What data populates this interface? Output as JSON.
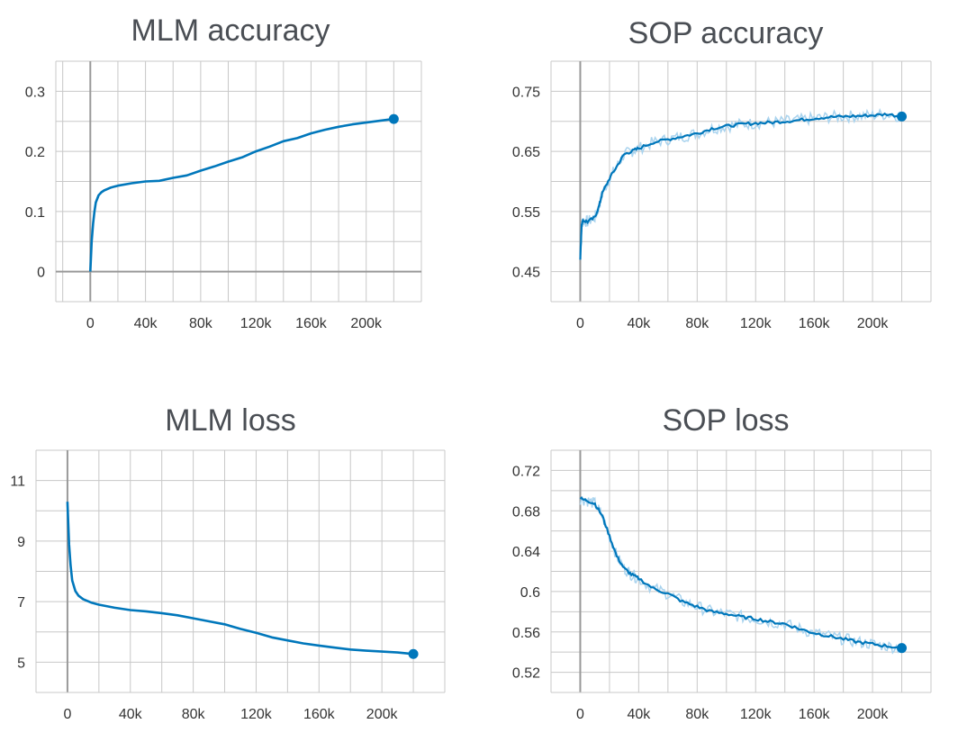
{
  "colors": {
    "series": "#0077bb",
    "raw": "#a9d3ee",
    "grid": "#c8c8c8",
    "axis": "#999999",
    "title": "#4a4e54"
  },
  "chart_data": [
    {
      "type": "line",
      "title": "MLM accuracy",
      "xlim": [
        -25000,
        240000
      ],
      "ylim": [
        -0.05,
        0.35
      ],
      "x_ticks": [
        0,
        40000,
        80000,
        120000,
        160000,
        200000
      ],
      "x_tick_labels": [
        "0",
        "40k",
        "80k",
        "120k",
        "160k",
        "200k"
      ],
      "y_ticks": [
        0,
        0.1,
        0.2,
        0.3
      ],
      "y_tick_labels": [
        "0",
        "0.1",
        "0.2",
        "0.3"
      ],
      "grid": true,
      "series": [
        {
          "x": [
            0,
            1000,
            2000,
            3000,
            4000,
            6000,
            8000,
            10000,
            15000,
            20000,
            30000,
            40000,
            50000,
            60000,
            70000,
            80000,
            90000,
            100000,
            110000,
            120000,
            130000,
            140000,
            150000,
            160000,
            170000,
            180000,
            190000,
            200000,
            210000,
            220000
          ],
          "y": [
            0,
            0.05,
            0.08,
            0.1,
            0.115,
            0.127,
            0.132,
            0.135,
            0.14,
            0.143,
            0.147,
            0.15,
            0.151,
            0.156,
            0.16,
            0.168,
            0.175,
            0.183,
            0.19,
            0.2,
            0.208,
            0.217,
            0.222,
            0.23,
            0.236,
            0.241,
            0.245,
            0.248,
            0.251,
            0.254
          ]
        }
      ],
      "last_point": [
        220000,
        0.254
      ]
    },
    {
      "type": "line",
      "title": "SOP accuracy",
      "xlim": [
        -20000,
        240000
      ],
      "ylim": [
        0.4,
        0.8
      ],
      "x_ticks": [
        0,
        40000,
        80000,
        120000,
        160000,
        200000
      ],
      "x_tick_labels": [
        "0",
        "40k",
        "80k",
        "120k",
        "160k",
        "200k"
      ],
      "y_ticks": [
        0.45,
        0.55,
        0.65,
        0.75
      ],
      "y_tick_labels": [
        "0.45",
        "0.55",
        "0.65",
        "0.75"
      ],
      "grid": true,
      "series": [
        {
          "x": [
            0,
            1000,
            2000,
            5000,
            10000,
            13000,
            15000,
            20000,
            25000,
            30000,
            35000,
            40000,
            50000,
            60000,
            70000,
            80000,
            90000,
            100000,
            110000,
            120000,
            130000,
            140000,
            150000,
            160000,
            170000,
            180000,
            190000,
            200000,
            210000,
            220000
          ],
          "y": [
            0.47,
            0.53,
            0.535,
            0.533,
            0.54,
            0.56,
            0.58,
            0.605,
            0.625,
            0.645,
            0.65,
            0.655,
            0.665,
            0.67,
            0.675,
            0.68,
            0.688,
            0.692,
            0.695,
            0.697,
            0.698,
            0.7,
            0.702,
            0.705,
            0.707,
            0.708,
            0.709,
            0.71,
            0.712,
            0.708
          ]
        }
      ],
      "last_point": [
        220000,
        0.708
      ]
    },
    {
      "type": "line",
      "title": "MLM loss",
      "xlim": [
        -20000,
        240000
      ],
      "ylim": [
        4,
        12
      ],
      "x_ticks": [
        0,
        40000,
        80000,
        120000,
        160000,
        200000
      ],
      "x_tick_labels": [
        "0",
        "40k",
        "80k",
        "120k",
        "160k",
        "200k"
      ],
      "y_ticks": [
        5,
        7,
        9,
        11
      ],
      "y_tick_labels": [
        "5",
        "7",
        "9",
        "11"
      ],
      "grid": true,
      "series": [
        {
          "x": [
            0,
            500,
            1000,
            2000,
            3000,
            5000,
            7000,
            10000,
            15000,
            20000,
            30000,
            40000,
            50000,
            60000,
            70000,
            80000,
            90000,
            100000,
            110000,
            120000,
            130000,
            140000,
            150000,
            160000,
            170000,
            180000,
            190000,
            200000,
            210000,
            220000
          ],
          "y": [
            10.3,
            9.6,
            8.9,
            8.2,
            7.7,
            7.35,
            7.2,
            7.08,
            6.97,
            6.9,
            6.8,
            6.72,
            6.68,
            6.62,
            6.55,
            6.45,
            6.35,
            6.25,
            6.1,
            5.97,
            5.82,
            5.72,
            5.62,
            5.55,
            5.48,
            5.42,
            5.38,
            5.35,
            5.32,
            5.27
          ]
        }
      ],
      "last_point": [
        220000,
        5.27
      ]
    },
    {
      "type": "line",
      "title": "SOP loss",
      "xlim": [
        -20000,
        240000
      ],
      "ylim": [
        0.5,
        0.74
      ],
      "x_ticks": [
        0,
        40000,
        80000,
        120000,
        160000,
        200000
      ],
      "x_tick_labels": [
        "0",
        "40k",
        "80k",
        "120k",
        "160k",
        "200k"
      ],
      "y_ticks": [
        0.52,
        0.56,
        0.6,
        0.64,
        0.68,
        0.72
      ],
      "y_tick_labels": [
        "0.52",
        "0.56",
        "0.6",
        "0.64",
        "0.68",
        "0.72"
      ],
      "grid": true,
      "series": [
        {
          "x": [
            0,
            5000,
            10000,
            15000,
            20000,
            25000,
            30000,
            35000,
            40000,
            50000,
            60000,
            70000,
            80000,
            90000,
            100000,
            110000,
            120000,
            130000,
            140000,
            150000,
            160000,
            170000,
            180000,
            190000,
            200000,
            210000,
            220000
          ],
          "y": [
            0.692,
            0.69,
            0.687,
            0.675,
            0.655,
            0.635,
            0.623,
            0.617,
            0.613,
            0.603,
            0.598,
            0.59,
            0.585,
            0.58,
            0.578,
            0.575,
            0.573,
            0.57,
            0.568,
            0.563,
            0.559,
            0.556,
            0.553,
            0.55,
            0.548,
            0.546,
            0.544
          ]
        }
      ],
      "last_point": [
        220000,
        0.544
      ]
    }
  ]
}
